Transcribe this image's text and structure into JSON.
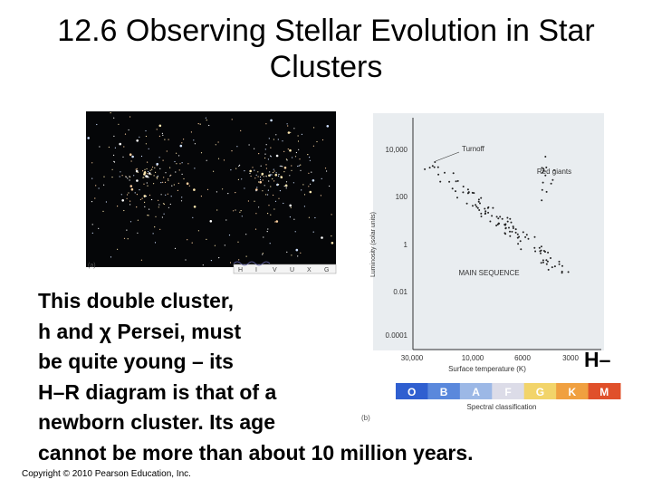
{
  "title": "12.6 Observing Stellar Evolution in Star Clusters",
  "photo": {
    "label": "(a)",
    "bands": [
      "H",
      "I",
      "V",
      "U",
      "X",
      "G"
    ]
  },
  "hr_diagram": {
    "label": "(b)",
    "y_axis_title": "Luminosity (solar units)",
    "y_ticks": [
      "10,000",
      "100",
      "1",
      "0.01",
      "0.0001"
    ],
    "x_axis_title": "Surface temperature (K)",
    "x_ticks": [
      "30,000",
      "10,000",
      "6000",
      "3000"
    ],
    "annotations": [
      "Turnoff",
      "Red giants",
      "MAIN SEQUENCE"
    ],
    "spectral_classes": [
      "O",
      "B",
      "A",
      "F",
      "G",
      "K",
      "M"
    ],
    "spectral_title": "Spectral classification"
  },
  "body": {
    "lines": [
      "This double cluster,",
      "h and χ Persei, must",
      "be quite young – its",
      "H–R diagram is that of a",
      "newborn cluster. Its age",
      "cannot be more than about 10 million years."
    ],
    "fragment": "H–"
  },
  "footer": "Copyright © 2010 Pearson Education, Inc."
}
